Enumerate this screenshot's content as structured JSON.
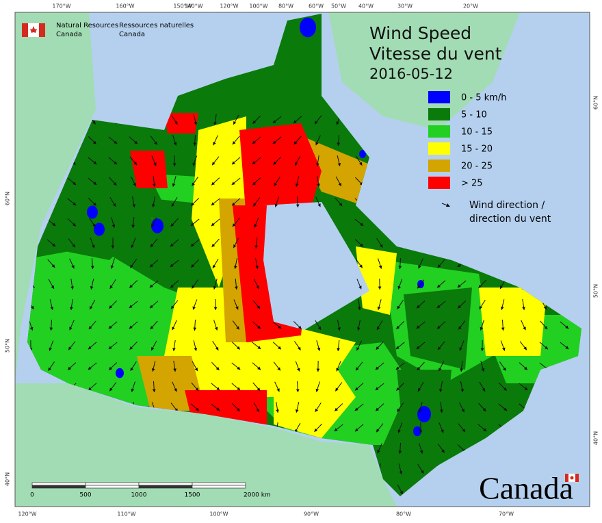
{
  "header": {
    "agency_en": [
      "Natural Resources",
      "Canada"
    ],
    "agency_fr": [
      "Ressources naturelles",
      "Canada"
    ]
  },
  "title": {
    "en": "Wind Speed",
    "fr": "Vitesse du vent",
    "date": "2016-05-12"
  },
  "legend": {
    "items": [
      {
        "label": "0 - 5 km/h",
        "color": "#0000ff"
      },
      {
        "label": "5 - 10",
        "color": "#0a7a0a"
      },
      {
        "label": "10 - 15",
        "color": "#22d022"
      },
      {
        "label": "15 - 20",
        "color": "#ffff00"
      },
      {
        "label": "20 - 25",
        "color": "#d4a500"
      },
      {
        "label": "> 25",
        "color": "#ff0000"
      }
    ],
    "direction": [
      "Wind direction /",
      "direction du vent"
    ]
  },
  "graticule": {
    "top": [
      "170°W",
      "160°W",
      "150°W",
      "140°W",
      "120°W",
      "100°W",
      "80°W",
      "60°W",
      "50°W",
      "40°W",
      "30°W",
      "20°W"
    ],
    "bottom": [
      "120°W",
      "110°W",
      "100°W",
      "90°W",
      "80°W",
      "70°W"
    ],
    "left": [
      "60°N",
      "50°N",
      "40°N"
    ],
    "right": [
      "60°N",
      "50°N",
      "40°N"
    ]
  },
  "scale_bar": {
    "labels": [
      "0",
      "500",
      "1000",
      "1500",
      "2000 km"
    ]
  },
  "wordmark": "Canada"
}
